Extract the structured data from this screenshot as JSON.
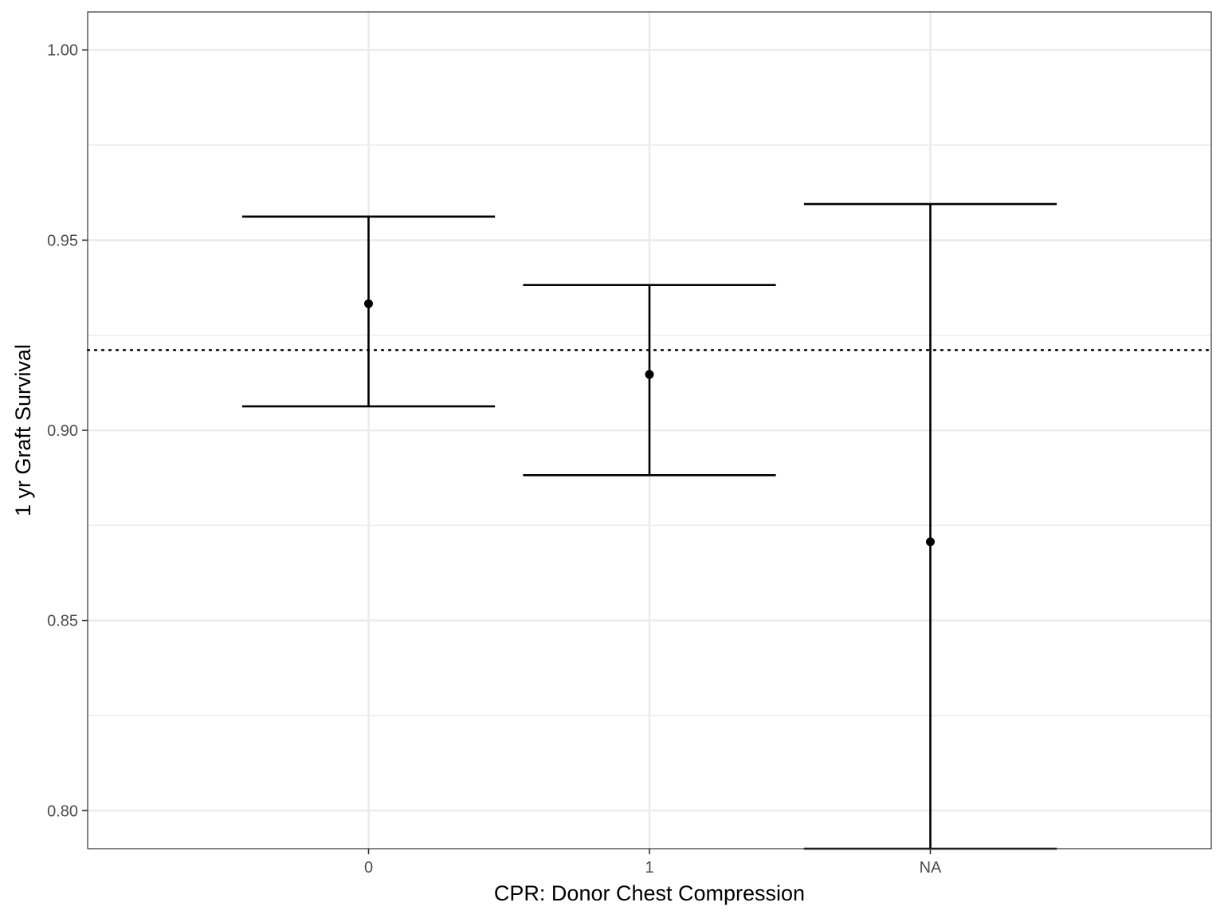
{
  "chart_data": {
    "type": "errorbar",
    "title": "",
    "xlabel": "CPR: Donor Chest Compression",
    "ylabel": "1 yr Graft Survival",
    "categories": [
      "0",
      "1",
      "NA"
    ],
    "points": [
      {
        "category": "0",
        "estimate": 0.9333,
        "lower": 0.9063,
        "upper": 0.9562
      },
      {
        "category": "1",
        "estimate": 0.9147,
        "lower": 0.8882,
        "upper": 0.9382
      },
      {
        "category": "NA",
        "estimate": 0.8707,
        "lower": 0.79,
        "upper": 0.9595
      }
    ],
    "reference_line": {
      "value": 0.9211,
      "style": "dotted"
    },
    "ylim": [
      0.79,
      1.01
    ],
    "yticks": [
      0.8,
      0.85,
      0.9,
      0.95,
      1.0
    ],
    "ytick_labels": [
      "0.80",
      "0.85",
      "0.90",
      "0.95",
      "1.00"
    ],
    "grid": true,
    "theme": "bw",
    "colors": {
      "mark": "#000000",
      "grid": "#ebebeb",
      "border": "#333333",
      "tick_text": "#4d4d4d"
    }
  }
}
